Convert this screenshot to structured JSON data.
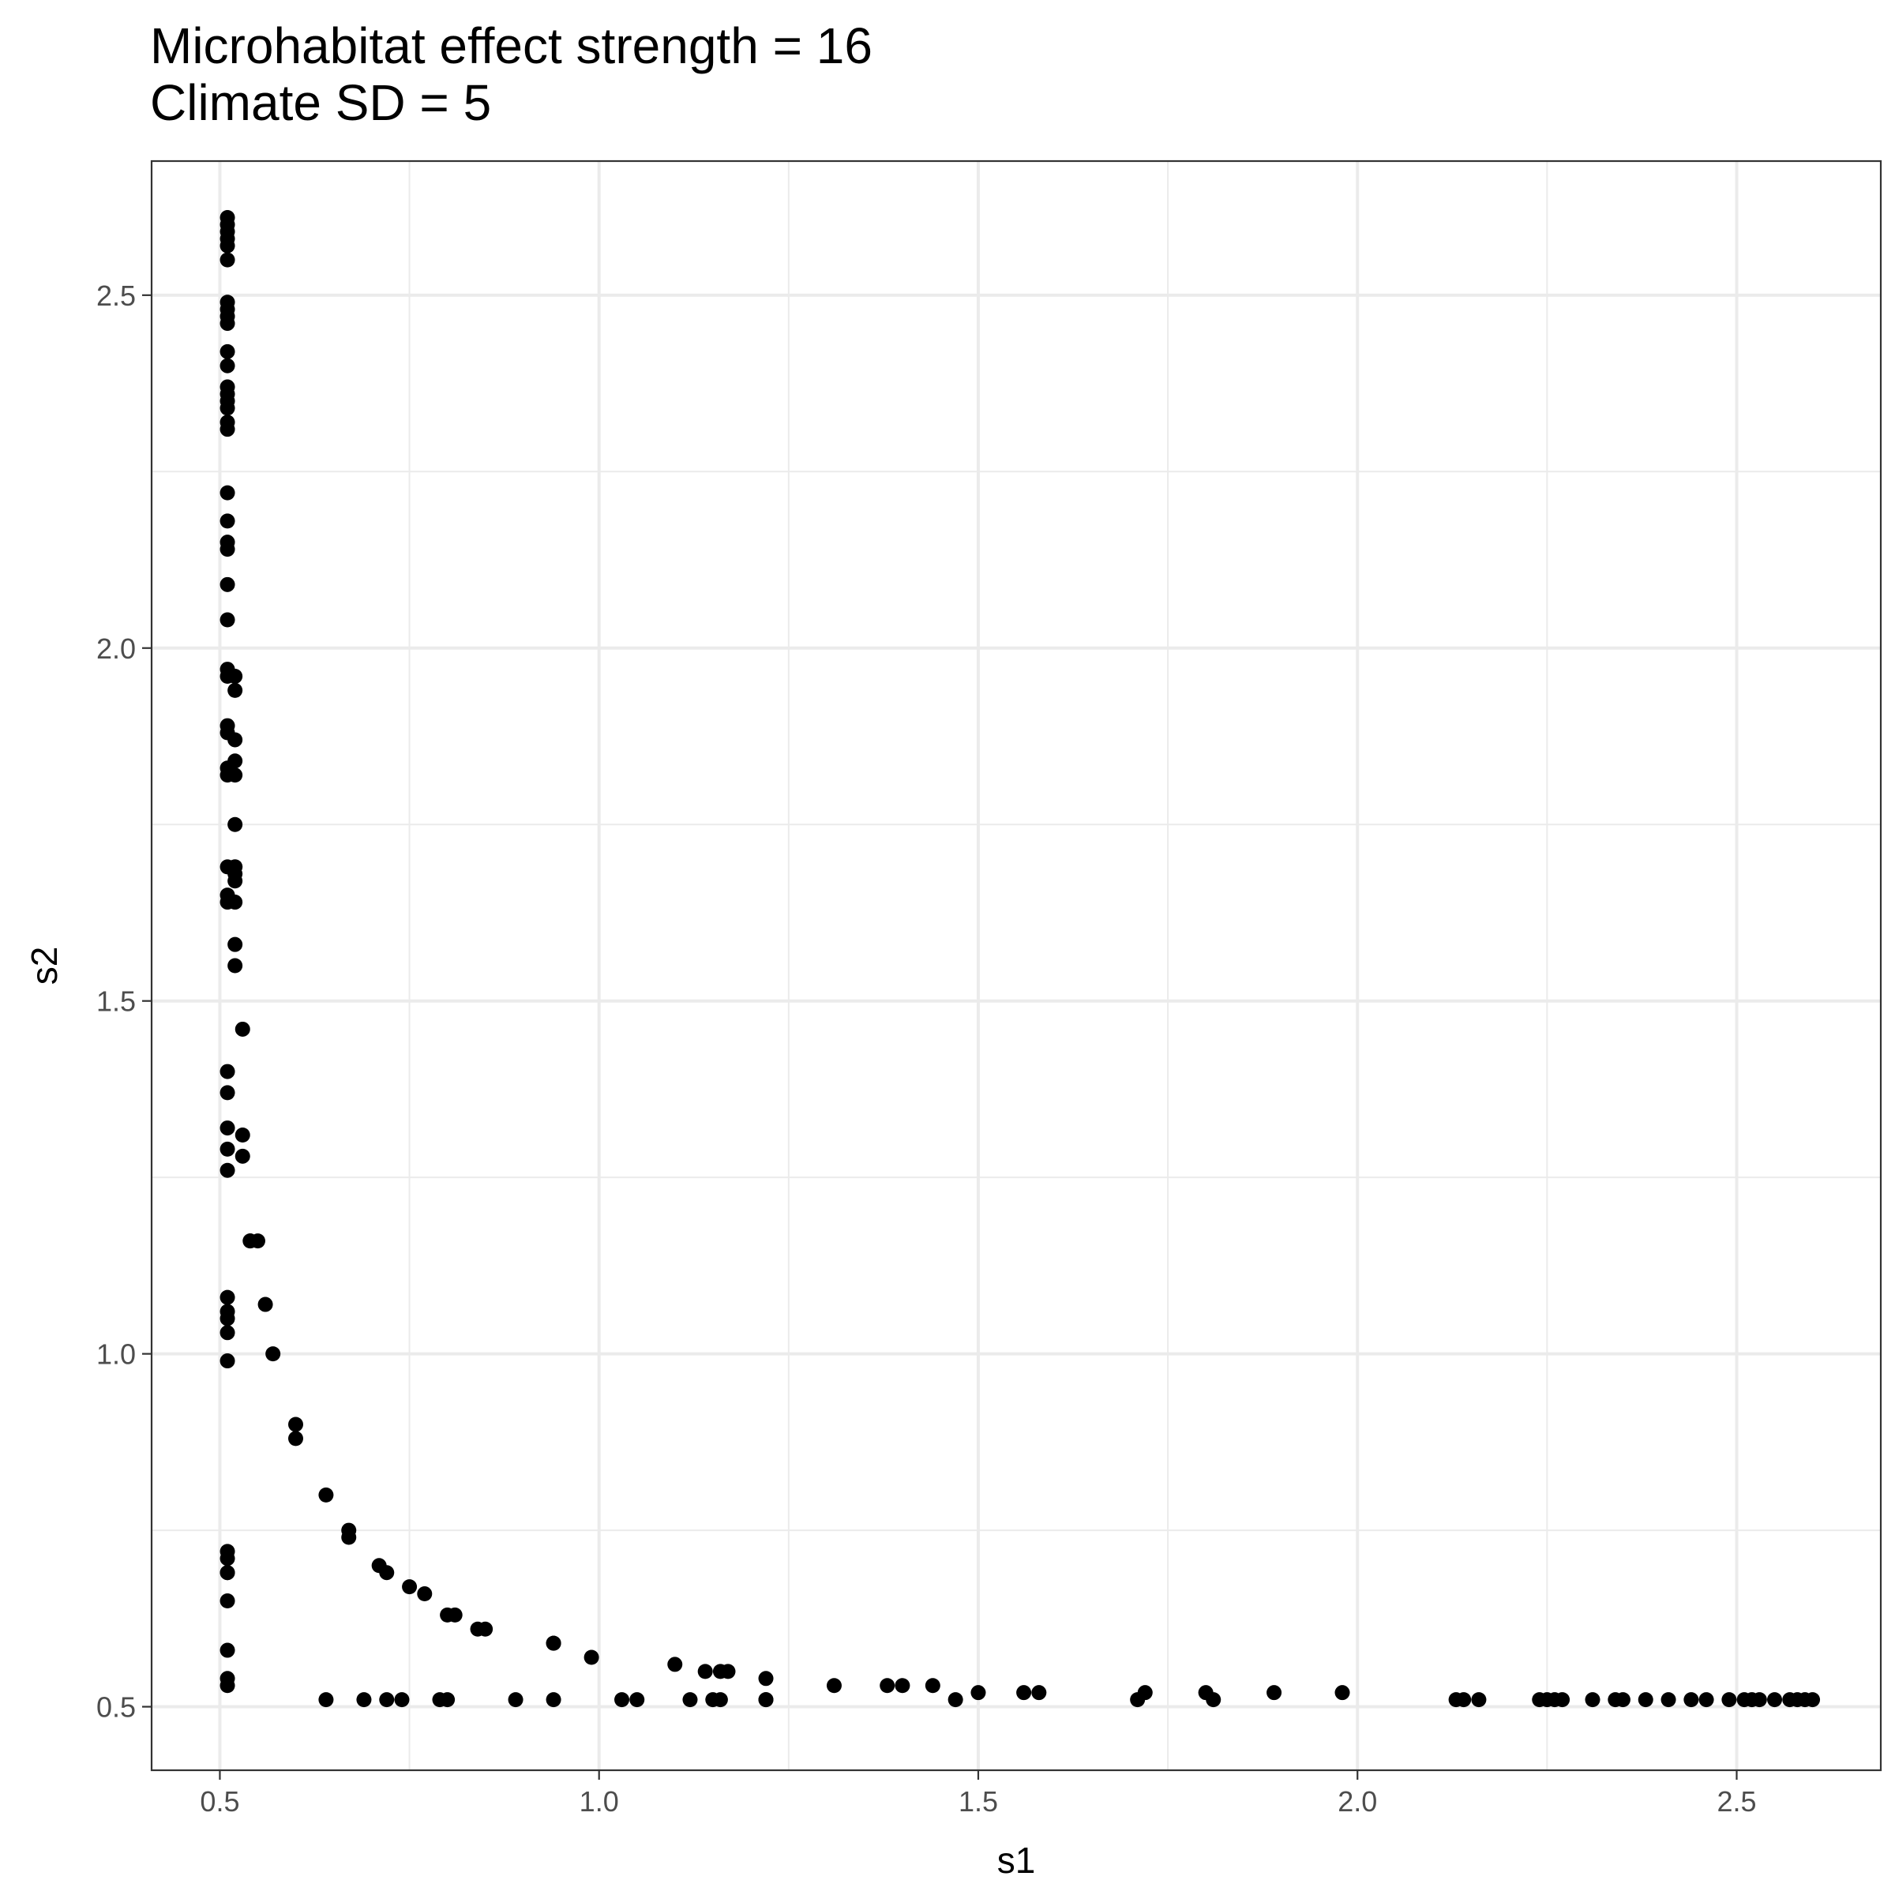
{
  "chart_data": {
    "type": "scatter",
    "title": "Microhabitat effect strength = 16",
    "subtitle": "Climate SD = 5",
    "xlabel": "s1",
    "ylabel": "s2",
    "xlim": [
      0.41,
      2.69
    ],
    "ylim": [
      0.41,
      2.69
    ],
    "xticks": [
      "0.5",
      "1.0",
      "1.5",
      "2.0",
      "2.5"
    ],
    "yticks": [
      "0.5",
      "1.0",
      "1.5",
      "2.0",
      "2.5"
    ],
    "grid": true,
    "point_color": "#000000",
    "x": [
      0.51,
      0.51,
      0.51,
      0.51,
      0.51,
      0.51,
      0.51,
      0.51,
      0.51,
      0.51,
      0.51,
      0.51,
      0.51,
      0.51,
      0.51,
      0.51,
      0.51,
      0.51,
      0.51,
      0.51,
      0.51,
      0.51,
      0.51,
      0.51,
      0.51,
      0.51,
      0.52,
      0.52,
      0.51,
      0.51,
      0.52,
      0.52,
      0.51,
      0.51,
      0.52,
      0.52,
      0.51,
      0.52,
      0.52,
      0.51,
      0.51,
      0.52,
      0.53,
      0.51,
      0.51,
      0.51,
      0.51,
      0.51,
      0.51,
      0.51,
      0.51,
      0.51,
      0.51,
      0.51,
      0.51,
      0.51,
      0.51,
      0.51,
      0.51,
      0.51,
      0.51,
      0.52,
      0.52,
      0.52,
      0.52,
      0.53,
      0.53,
      0.54,
      0.54,
      0.55,
      0.56,
      0.57,
      0.6,
      0.6,
      0.64,
      0.67,
      0.67,
      0.71,
      0.72,
      0.75,
      0.77,
      0.8,
      0.81,
      0.84,
      0.85,
      0.94,
      0.94,
      0.99,
      1.1,
      1.14,
      1.16,
      1.17,
      1.22,
      1.31,
      1.38,
      1.4,
      1.44,
      1.5,
      1.56,
      1.58,
      1.72,
      1.8,
      1.89,
      1.98,
      0.64,
      0.69,
      0.72,
      0.74,
      0.79,
      0.8,
      0.89,
      0.94,
      1.03,
      1.05,
      1.12,
      1.15,
      1.16,
      1.22,
      1.22,
      1.47,
      1.71,
      1.81,
      2.13,
      2.14,
      2.16,
      2.24,
      2.25,
      2.26,
      2.27,
      2.31,
      2.34,
      2.35,
      2.38,
      2.41,
      2.44,
      2.46,
      2.49,
      2.51,
      2.52,
      2.53,
      2.55,
      2.57,
      2.58,
      2.59,
      2.6
    ],
    "y": [
      2.61,
      2.6,
      2.59,
      2.58,
      2.57,
      2.55,
      2.49,
      2.48,
      2.47,
      2.46,
      2.42,
      2.4,
      2.37,
      2.36,
      2.35,
      2.34,
      2.32,
      2.31,
      2.22,
      2.18,
      2.15,
      2.14,
      2.09,
      2.04,
      1.97,
      1.96,
      1.96,
      1.94,
      1.89,
      1.88,
      1.87,
      1.84,
      1.83,
      1.82,
      1.82,
      1.75,
      1.69,
      1.69,
      1.68,
      1.65,
      1.64,
      1.64,
      1.46,
      1.4,
      1.37,
      1.32,
      1.29,
      1.26,
      1.08,
      1.06,
      1.05,
      1.03,
      0.99,
      0.72,
      0.71,
      0.69,
      0.69,
      0.65,
      0.58,
      0.54,
      0.53,
      1.69,
      1.67,
      1.58,
      1.55,
      1.31,
      1.28,
      1.16,
      1.16,
      1.16,
      1.07,
      1.0,
      0.9,
      0.88,
      0.8,
      0.75,
      0.74,
      0.7,
      0.69,
      0.67,
      0.66,
      0.63,
      0.63,
      0.61,
      0.61,
      0.59,
      0.59,
      0.57,
      0.56,
      0.55,
      0.55,
      0.55,
      0.54,
      0.53,
      0.53,
      0.53,
      0.53,
      0.52,
      0.52,
      0.52,
      0.52,
      0.52,
      0.52,
      0.52,
      0.51,
      0.51,
      0.51,
      0.51,
      0.51,
      0.51,
      0.51,
      0.51,
      0.51,
      0.51,
      0.51,
      0.51,
      0.51,
      0.51,
      0.51,
      0.51,
      0.51,
      0.51,
      0.51,
      0.51,
      0.51,
      0.51,
      0.51,
      0.51,
      0.51,
      0.51,
      0.51,
      0.51,
      0.51,
      0.51,
      0.51,
      0.51,
      0.51,
      0.51,
      0.51,
      0.51,
      0.51,
      0.51,
      0.51,
      0.51,
      0.51
    ]
  }
}
